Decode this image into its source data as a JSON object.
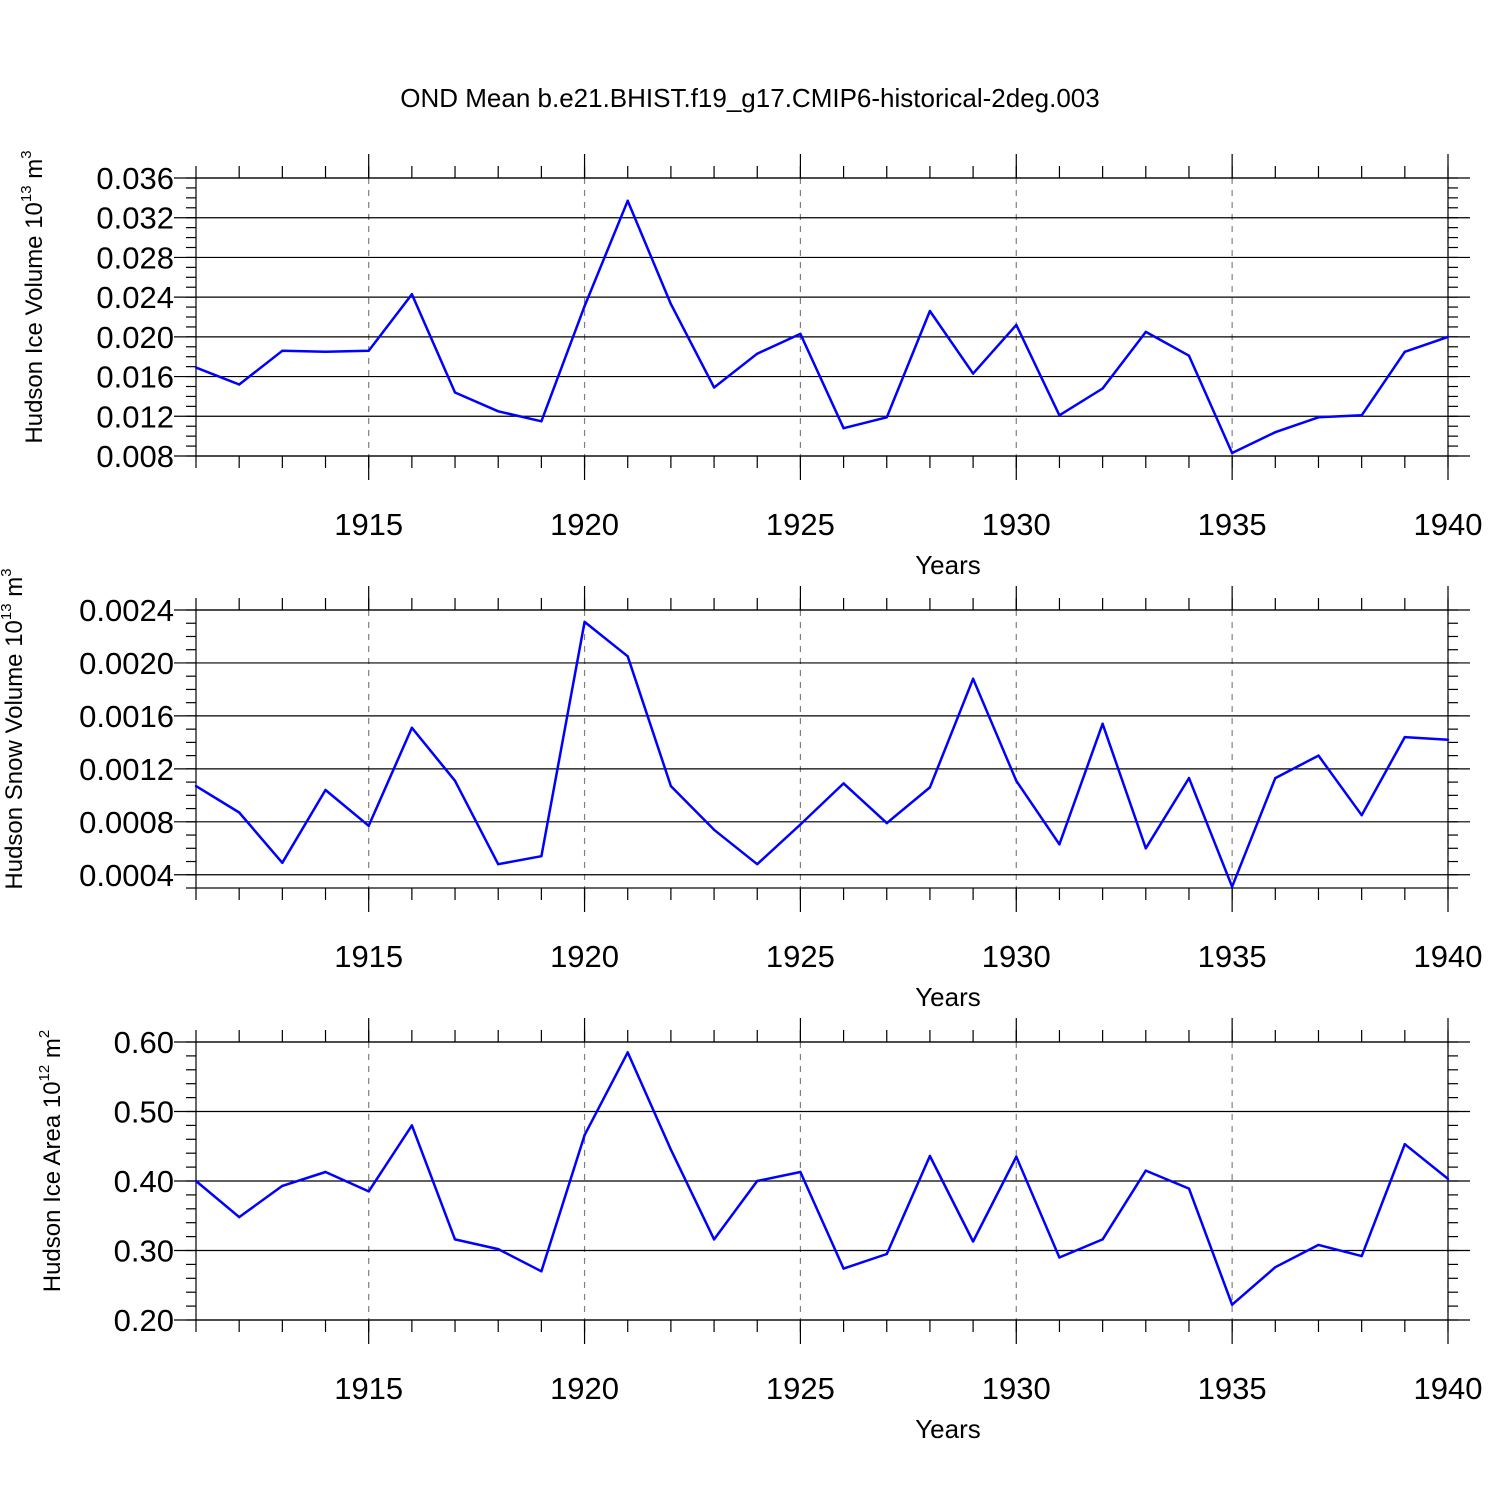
{
  "figure_title": "OND Mean b.e21.BHIST.f19_g17.CMIP6-historical-2deg.003",
  "series_color": "#0000ff",
  "chart_data": [
    {
      "type": "line",
      "title": "OND Mean b.e21.BHIST.f19_g17.CMIP6-historical-2deg.003",
      "xlabel": "Years",
      "ylabel_parts": {
        "prefix": "Hudson Ice Volume 10",
        "exponent": "13",
        "unit": " m",
        "unit_exp": "3"
      },
      "xlim": [
        1911,
        1940
      ],
      "ylim": [
        0.008,
        0.036
      ],
      "x_ticks": [
        "1915",
        "1920",
        "1925",
        "1930",
        "1935",
        "1940"
      ],
      "y_ticks": [
        "0.008",
        "0.012",
        "0.016",
        "0.020",
        "0.024",
        "0.028",
        "0.032",
        "0.036"
      ],
      "y_minor_step": 0.001,
      "grid": "vertical-dashed-at-major-x",
      "x": [
        1911,
        1912,
        1913,
        1914,
        1915,
        1916,
        1917,
        1918,
        1919,
        1920,
        1921,
        1922,
        1923,
        1924,
        1925,
        1926,
        1927,
        1928,
        1929,
        1930,
        1931,
        1932,
        1933,
        1934,
        1935,
        1936,
        1937,
        1938,
        1939,
        1940
      ],
      "values": [
        0.0169,
        0.0152,
        0.0186,
        0.0185,
        0.0186,
        0.0243,
        0.0144,
        0.0125,
        0.0115,
        0.0231,
        0.0337,
        0.0233,
        0.0149,
        0.0183,
        0.0203,
        0.0108,
        0.0119,
        0.0226,
        0.0163,
        0.0212,
        0.0121,
        0.0148,
        0.0205,
        0.0181,
        0.0083,
        0.0104,
        0.0119,
        0.0121,
        0.0185,
        0.02
      ]
    },
    {
      "type": "line",
      "xlabel": "Years",
      "ylabel_parts": {
        "prefix": "Hudson Snow Volume 10",
        "exponent": "13",
        "unit": " m",
        "unit_exp": "3"
      },
      "xlim": [
        1911,
        1940
      ],
      "ylim": [
        0.0003,
        0.0024
      ],
      "x_ticks": [
        "1915",
        "1920",
        "1925",
        "1930",
        "1935",
        "1940"
      ],
      "y_ticks": [
        "0.0004",
        "0.0008",
        "0.0012",
        "0.0016",
        "0.0020",
        "0.0024"
      ],
      "y_minor_step": 0.0001,
      "grid": "vertical-dashed-at-major-x",
      "x": [
        1911,
        1912,
        1913,
        1914,
        1915,
        1916,
        1917,
        1918,
        1919,
        1920,
        1921,
        1922,
        1923,
        1924,
        1925,
        1926,
        1927,
        1928,
        1929,
        1930,
        1931,
        1932,
        1933,
        1934,
        1935,
        1936,
        1937,
        1938,
        1939,
        1940
      ],
      "values": [
        0.00107,
        0.00087,
        0.00049,
        0.00104,
        0.00077,
        0.00151,
        0.00111,
        0.00048,
        0.00054,
        0.00231,
        0.00205,
        0.00107,
        0.00074,
        0.00048,
        0.00078,
        0.00109,
        0.00079,
        0.00106,
        0.00188,
        0.00111,
        0.00063,
        0.00154,
        0.0006,
        0.00113,
        0.00031,
        0.00113,
        0.0013,
        0.00085,
        0.00144,
        0.00142
      ]
    },
    {
      "type": "line",
      "xlabel": "Years",
      "ylabel_parts": {
        "prefix": "Hudson Ice Area 10",
        "exponent": "12",
        "unit": " m",
        "unit_exp": "2"
      },
      "xlim": [
        1911,
        1940
      ],
      "ylim": [
        0.2,
        0.6
      ],
      "x_ticks": [
        "1915",
        "1920",
        "1925",
        "1930",
        "1935",
        "1940"
      ],
      "y_ticks": [
        "0.20",
        "0.30",
        "0.40",
        "0.50",
        "0.60"
      ],
      "y_minor_step": 0.02,
      "grid": "vertical-dashed-at-major-x",
      "x": [
        1911,
        1912,
        1913,
        1914,
        1915,
        1916,
        1917,
        1918,
        1919,
        1920,
        1921,
        1922,
        1923,
        1924,
        1925,
        1926,
        1927,
        1928,
        1929,
        1930,
        1931,
        1932,
        1933,
        1934,
        1935,
        1936,
        1937,
        1938,
        1939,
        1940
      ],
      "values": [
        0.4,
        0.348,
        0.393,
        0.413,
        0.385,
        0.48,
        0.316,
        0.302,
        0.27,
        0.466,
        0.585,
        0.445,
        0.316,
        0.4,
        0.413,
        0.274,
        0.295,
        0.436,
        0.313,
        0.435,
        0.29,
        0.316,
        0.415,
        0.389,
        0.222,
        0.276,
        0.308,
        0.292,
        0.453,
        0.403
      ]
    }
  ]
}
